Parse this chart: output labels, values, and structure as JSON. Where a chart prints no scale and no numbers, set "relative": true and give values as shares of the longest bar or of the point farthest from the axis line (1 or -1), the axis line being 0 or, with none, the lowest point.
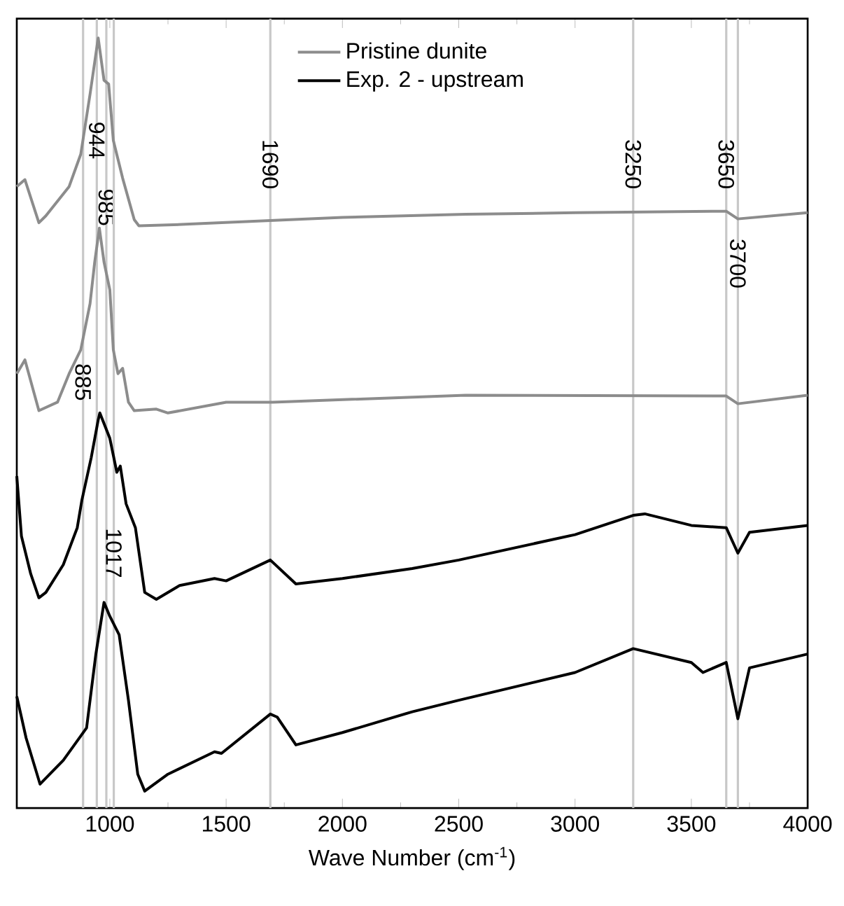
{
  "chart_data": {
    "type": "line",
    "relative": true,
    "xlabel": "Wave Number (cm$^{-1}$)",
    "xlim": [
      600,
      4000
    ],
    "xticks": [
      1000,
      1500,
      2000,
      2500,
      3000,
      3500,
      4000
    ],
    "legend": "top",
    "line_style": "solid",
    "marker": "none",
    "series": [
      {
        "name": "Pristine dunite",
        "color": "#8c8c8c",
        "x": [
          600,
          635,
          695,
          725,
          825,
          875,
          915,
          950,
          975,
          995,
          1015,
          1055,
          1105,
          1125,
          1325,
          2000,
          2530,
          3000,
          3650,
          3700,
          4000
        ],
        "values": [
          0.807,
          0.816,
          0.76,
          0.769,
          0.807,
          0.849,
          0.927,
          1.0,
          0.945,
          0.94,
          0.867,
          0.818,
          0.764,
          0.756,
          0.758,
          0.767,
          0.771,
          0.773,
          0.775,
          0.765,
          0.773
        ]
      },
      {
        "color": "#8c8c8c",
        "x": [
          600,
          635,
          695,
          775,
          825,
          875,
          915,
          935,
          955,
          975,
          1000,
          1015,
          1035,
          1055,
          1080,
          1105,
          1200,
          1250,
          1500,
          1700,
          2530,
          3650,
          3700,
          4000
        ],
        "values": [
          0.564,
          0.582,
          0.516,
          0.527,
          0.564,
          0.595,
          0.655,
          0.709,
          0.753,
          0.709,
          0.673,
          0.595,
          0.564,
          0.571,
          0.527,
          0.516,
          0.518,
          0.513,
          0.527,
          0.527,
          0.536,
          0.535,
          0.525,
          0.536
        ]
      },
      {
        "name": "Exp. 2 - upstream",
        "color": "#000000",
        "x": [
          600,
          620,
          660,
          695,
          725,
          800,
          860,
          880,
          920,
          950,
          957,
          1000,
          1030,
          1045,
          1070,
          1110,
          1150,
          1200,
          1300,
          1450,
          1500,
          1690,
          1800,
          2000,
          2300,
          2500,
          3000,
          3250,
          3300,
          3500,
          3650,
          3700,
          3750,
          4000
        ],
        "values": [
          0.431,
          0.353,
          0.304,
          0.273,
          0.28,
          0.316,
          0.364,
          0.4,
          0.455,
          0.504,
          0.513,
          0.48,
          0.436,
          0.444,
          0.395,
          0.364,
          0.28,
          0.271,
          0.289,
          0.298,
          0.295,
          0.322,
          0.291,
          0.298,
          0.311,
          0.322,
          0.355,
          0.38,
          0.382,
          0.367,
          0.364,
          0.331,
          0.358,
          0.367
        ]
      },
      {
        "color": "#000000",
        "x": [
          600,
          640,
          700,
          800,
          900,
          940,
          975,
          1000,
          1040,
          1080,
          1120,
          1150,
          1250,
          1450,
          1480,
          1690,
          1720,
          1800,
          2000,
          2300,
          2500,
          3000,
          3250,
          3500,
          3550,
          3650,
          3700,
          3750,
          4000
        ],
        "values": [
          0.145,
          0.091,
          0.031,
          0.062,
          0.104,
          0.2,
          0.267,
          0.249,
          0.225,
          0.14,
          0.044,
          0.022,
          0.044,
          0.073,
          0.071,
          0.122,
          0.118,
          0.082,
          0.098,
          0.125,
          0.14,
          0.176,
          0.207,
          0.189,
          0.176,
          0.189,
          0.116,
          0.182,
          0.2
        ]
      }
    ],
    "ref_lines": [
      {
        "axis": "x",
        "value": 885,
        "label": "885",
        "color": "#c8c8c8"
      },
      {
        "axis": "x",
        "value": 944,
        "label": "944",
        "color": "#c8c8c8"
      },
      {
        "axis": "x",
        "value": 985,
        "label": "985",
        "color": "#c8c8c8"
      },
      {
        "axis": "x",
        "value": 1017,
        "label": "1017",
        "color": "#c8c8c8"
      },
      {
        "axis": "x",
        "value": 1690,
        "label": "1690",
        "color": "#c8c8c8"
      },
      {
        "axis": "x",
        "value": 3250,
        "label": "3250",
        "color": "#c8c8c8"
      },
      {
        "axis": "x",
        "value": 3650,
        "label": "3650",
        "color": "#c8c8c8"
      },
      {
        "axis": "x",
        "value": 3700,
        "label": "3700",
        "color": "#c8c8c8"
      }
    ]
  }
}
